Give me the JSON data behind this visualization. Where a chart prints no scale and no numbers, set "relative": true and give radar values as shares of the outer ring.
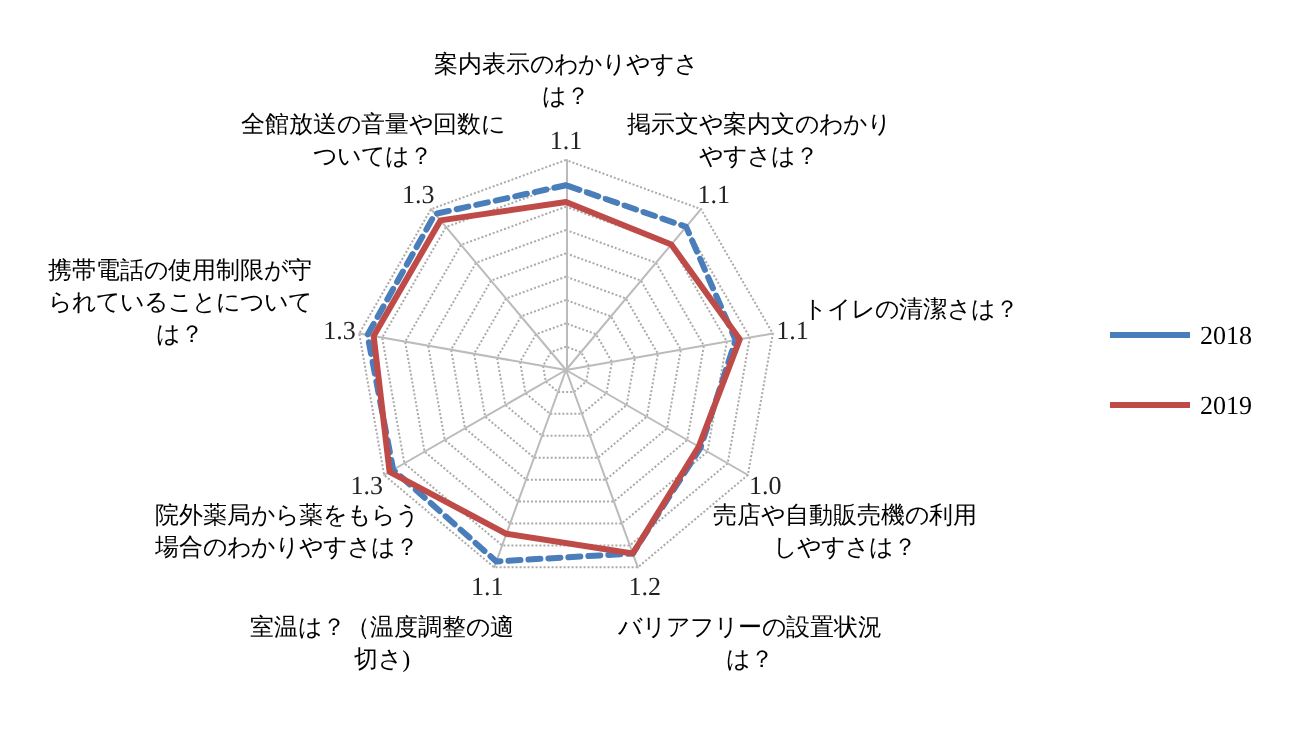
{
  "chart_data": {
    "type": "radar",
    "relative": true,
    "categories": [
      "案内表示のわかりやすさは？",
      "掲示文や案内文のわかりやすさは？",
      "トイレの清潔さは？",
      "売店や自動販売機の利用しやすさは？",
      "バリアフリーの設置状況は？",
      "室温は？（温度調整の適切さ)",
      "院外薬局から薬をもらう場合のわかりやすさは？",
      "携帯電話の使用制限が守られていることについては？",
      "全館放送の音量や回数については？"
    ],
    "series": [
      {
        "name": "2018",
        "color": "#4a7ebb",
        "line_style": "dashed",
        "values": [
          0.88,
          0.89,
          0.82,
          0.74,
          0.93,
          0.97,
          0.95,
          0.96,
          0.97
        ]
      },
      {
        "name": "2019",
        "color": "#be4b48",
        "line_style": "solid",
        "values": [
          0.8,
          0.78,
          0.84,
          0.73,
          0.93,
          0.83,
          0.97,
          0.93,
          0.93
        ]
      }
    ],
    "annotations": [
      {
        "text": "1.1",
        "x": "案内表示のわかりやすさは？"
      },
      {
        "text": "1.1",
        "x": "掲示文や案内文のわかりやすさは？"
      },
      {
        "text": "1.1",
        "x": "トイレの清潔さは？"
      },
      {
        "text": "1.0",
        "x": "売店や自動販売機の利用しやすさは？"
      },
      {
        "text": "1.2",
        "x": "バリアフリーの設置状況は？"
      },
      {
        "text": "1.1",
        "x": "室温は？（温度調整の適切さ)"
      },
      {
        "text": "1.3",
        "x": "院外薬局から薬をもらう場合のわかりやすさは？"
      },
      {
        "text": "1.3",
        "x": "携帯電話の使用制限が守られていることについては？"
      },
      {
        "text": "1.3",
        "x": "全館放送の音量や回数については？"
      }
    ],
    "grid": true,
    "legend": "right",
    "marker": "none"
  }
}
